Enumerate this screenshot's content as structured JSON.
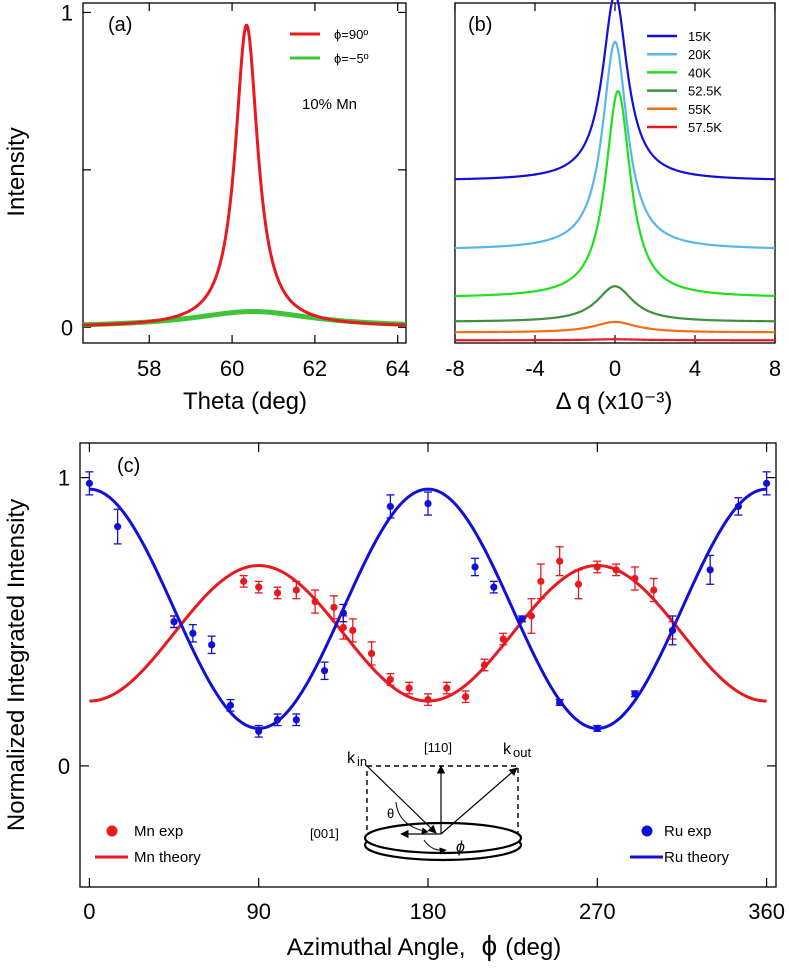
{
  "figure": {
    "colors": {
      "red": "#e8191f",
      "green": "#3ec43a",
      "blue": "#1010d8",
      "black": "#000000"
    }
  },
  "chart_data": [
    {
      "id": "a",
      "type": "line",
      "panel_label": "(a)",
      "xlabel": "Theta (deg)",
      "ylabel": "Intensity",
      "xlim": [
        56.4,
        64.2
      ],
      "ylim": [
        -0.05,
        1.03
      ],
      "xticks": [
        58,
        60,
        62,
        64
      ],
      "xtick_labels": [
        "58",
        "60",
        "62",
        "64"
      ],
      "yticks": [
        0,
        1
      ],
      "ytick_labels": [
        "0",
        "1"
      ],
      "annotation": "10% Mn",
      "legend_position": "top-right",
      "series": [
        {
          "name": "ϕ=90º",
          "legend_label": "ϕ=90º",
          "color": "#e8191f",
          "peak": {
            "center": 60.35,
            "height": 0.96,
            "width": 0.33,
            "baseline": 0.0
          }
        },
        {
          "name": "ϕ=−5º",
          "legend_label": "ϕ=−5º",
          "color": "#3ec43a",
          "peak": {
            "center": 60.5,
            "height": 0.05,
            "width": 1.8,
            "baseline": 0.0
          }
        }
      ]
    },
    {
      "id": "b",
      "type": "line",
      "panel_label": "(b)",
      "xlabel": "Δ q (x10⁻³)",
      "ylabel": "",
      "xlim": [
        -8,
        8
      ],
      "ylim": [
        0,
        1
      ],
      "xticks": [
        -8,
        -4,
        0,
        4,
        8
      ],
      "xtick_labels": [
        "-8",
        "-4",
        "0",
        "4",
        "8"
      ],
      "legend_position": "top-right",
      "series": [
        {
          "name": "15K",
          "color": "#1010d8",
          "baseline": 0.477,
          "peak_height": 0.548,
          "width": 0.75,
          "center": 0.0
        },
        {
          "name": "20K",
          "color": "#58b6ea",
          "baseline": 0.274,
          "peak_height": 0.612,
          "width": 0.75,
          "center": 0.0
        },
        {
          "name": "40K",
          "color": "#1ee01e",
          "baseline": 0.133,
          "peak_height": 0.608,
          "width": 0.75,
          "center": 0.15
        },
        {
          "name": "52.5K",
          "color": "#3e8f3e",
          "baseline": 0.062,
          "peak_height": 0.105,
          "width": 1.1,
          "center": 0.0
        },
        {
          "name": "55K",
          "color": "#f26d1a",
          "baseline": 0.031,
          "peak_height": 0.031,
          "width": 1.3,
          "center": 0.0
        },
        {
          "name": "57.5K",
          "color": "#e8191f",
          "baseline": 0.008,
          "peak_height": 0.003,
          "width": 1.5,
          "center": 0.0
        }
      ]
    },
    {
      "id": "c",
      "type": "scatter",
      "panel_label": "(c)",
      "xlabel": "Azimuthal Angle,",
      "xlabel_symbol": "ϕ",
      "xlabel_unit": "(deg)",
      "ylabel": "Normalized Integrated Intensity",
      "xlim": [
        -5,
        365
      ],
      "ylim": [
        -0.42,
        1.12
      ],
      "xticks": [
        0,
        90,
        180,
        270,
        360
      ],
      "xtick_labels": [
        "0",
        "90",
        "180",
        "270",
        "360"
      ],
      "yticks": [
        0,
        1
      ],
      "ytick_labels": [
        "0",
        "1"
      ],
      "legend": [
        {
          "label": "Mn exp",
          "kind": "marker",
          "color": "#e8191f"
        },
        {
          "label": "Mn theory",
          "kind": "line",
          "color": "#e8191f"
        },
        {
          "label": "Ru exp",
          "kind": "marker",
          "color": "#1010d8"
        },
        {
          "label": "Ru theory",
          "kind": "line",
          "color": "#1010d8"
        }
      ],
      "theory": [
        {
          "name": "Mn theory",
          "color": "#e8191f",
          "mean": 0.46,
          "amplitude": 0.235,
          "phase_sign": -1
        },
        {
          "name": "Ru theory",
          "color": "#1010d8",
          "mean": 0.545,
          "amplitude": 0.415,
          "phase_sign": 1
        }
      ],
      "series": [
        {
          "name": "Mn exp",
          "color": "#e8191f",
          "x": [
            45,
            82,
            90,
            100,
            110,
            120,
            130,
            135,
            140,
            150,
            160,
            170,
            180,
            190,
            200,
            210,
            220,
            235,
            240,
            250,
            260,
            270,
            280,
            290,
            300,
            310
          ],
          "y": [
            0.5,
            0.64,
            0.62,
            0.6,
            0.61,
            0.57,
            0.55,
            0.48,
            0.47,
            0.39,
            0.3,
            0.27,
            0.23,
            0.27,
            0.24,
            0.35,
            0.44,
            0.52,
            0.64,
            0.71,
            0.63,
            0.69,
            0.68,
            0.65,
            0.61,
            0.47
          ],
          "err": [
            0.02,
            0.02,
            0.02,
            0.02,
            0.03,
            0.04,
            0.04,
            0.04,
            0.04,
            0.04,
            0.02,
            0.02,
            0.02,
            0.02,
            0.02,
            0.02,
            0.02,
            0.06,
            0.06,
            0.05,
            0.05,
            0.02,
            0.02,
            0.04,
            0.04,
            0.03
          ]
        },
        {
          "name": "Ru exp",
          "color": "#1010d8",
          "x": [
            0,
            15,
            45,
            55,
            65,
            75,
            90,
            100,
            110,
            125,
            135,
            160,
            180,
            205,
            215,
            230,
            250,
            270,
            290,
            310,
            330,
            345,
            360
          ],
          "y": [
            0.98,
            0.83,
            0.5,
            0.46,
            0.42,
            0.21,
            0.12,
            0.16,
            0.16,
            0.33,
            0.53,
            0.9,
            0.91,
            0.69,
            0.62,
            0.51,
            0.22,
            0.13,
            0.25,
            0.47,
            0.68,
            0.9,
            0.98
          ],
          "err": [
            0.04,
            0.06,
            0.02,
            0.03,
            0.03,
            0.02,
            0.02,
            0.02,
            0.02,
            0.03,
            0.03,
            0.04,
            0.04,
            0.03,
            0.02,
            0.01,
            0.01,
            0.01,
            0.01,
            0.05,
            0.05,
            0.03,
            0.04
          ]
        }
      ],
      "inset": {
        "k_in": "k",
        "k_in_sub": "in",
        "k_out": "k",
        "k_out_sub": "out",
        "direction_110": "[110]",
        "direction_001": "[001]",
        "theta": "θ",
        "phi": "ϕ"
      }
    }
  ]
}
